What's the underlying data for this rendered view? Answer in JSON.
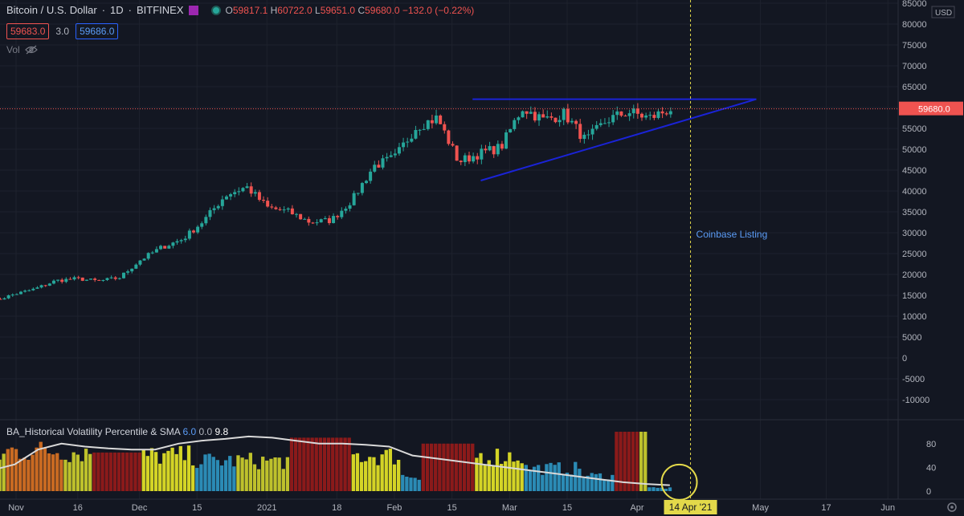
{
  "header": {
    "symbol": "Bitcoin / U.S. Dollar",
    "interval": "1D",
    "exchange": "BITFINEX",
    "ohlc": {
      "o": "59817.1",
      "h": "60722.0",
      "l": "59651.0",
      "c": "59680.0",
      "chg": "−132.0 (−0.22%)"
    }
  },
  "quote": {
    "bid": "59683.0",
    "spread": "3.0",
    "ask": "59686.0"
  },
  "volume_label": "Vol",
  "indicator": {
    "name": "BA_Historical Volatility Percentile & SMA",
    "v1": "6.0",
    "v2": "0.0",
    "v3": "9.8"
  },
  "currency": "USD",
  "annotation": "Coinbase Listing",
  "last_price_label": "59680.0",
  "date_marker_label": "14 Apr '21",
  "colors": {
    "up": "#26a69a",
    "down": "#ef5350",
    "bg": "#131722",
    "trend": "#1a23d6",
    "marker": "#e3d94a"
  },
  "chart_data": [
    {
      "type": "candlestick",
      "y_axis": {
        "ticks": [
          "85000",
          "80000",
          "75000",
          "70000",
          "65000",
          "60000",
          "55000",
          "50000",
          "45000",
          "40000",
          "35000",
          "30000",
          "25000",
          "20000",
          "15000",
          "10000",
          "5000",
          "0",
          "-5000",
          "-10000"
        ],
        "ylim": [
          -12500,
          85000
        ]
      },
      "x_axis": {
        "ticks": [
          "Nov",
          "16",
          "Dec",
          "15",
          "2021",
          "18",
          "Feb",
          "15",
          "Mar",
          "15",
          "Apr",
          "May",
          "17",
          "Jun"
        ]
      },
      "series_weekly_close": [
        13500,
        15200,
        16500,
        18500,
        19000,
        18400,
        19200,
        23500,
        26500,
        28500,
        33000,
        39000,
        41000,
        36000,
        35000,
        32500,
        33000,
        38000,
        46000,
        48000,
        55500,
        57500,
        47000,
        49000,
        50500,
        60000,
        57000,
        58500,
        52000,
        57000,
        59000,
        57500,
        59680
      ],
      "trendlines": [
        {
          "from": [
            "2021-02-20",
            62000
          ],
          "to": [
            "2021-04-30",
            62000
          ]
        },
        {
          "from": [
            "2021-02-22",
            42500
          ],
          "to": [
            "2021-04-30",
            62000
          ]
        }
      ],
      "event_line": {
        "date": "2021-04-14",
        "label": "Coinbase Listing"
      }
    },
    {
      "type": "bar",
      "title": "BA_Historical Volatility Percentile & SMA",
      "y_axis": {
        "ticks": [
          "80",
          "40",
          "0"
        ],
        "ylim": [
          0,
          110
        ]
      },
      "legend_values": [
        "6.0",
        "0.0",
        "9.8"
      ]
    }
  ]
}
